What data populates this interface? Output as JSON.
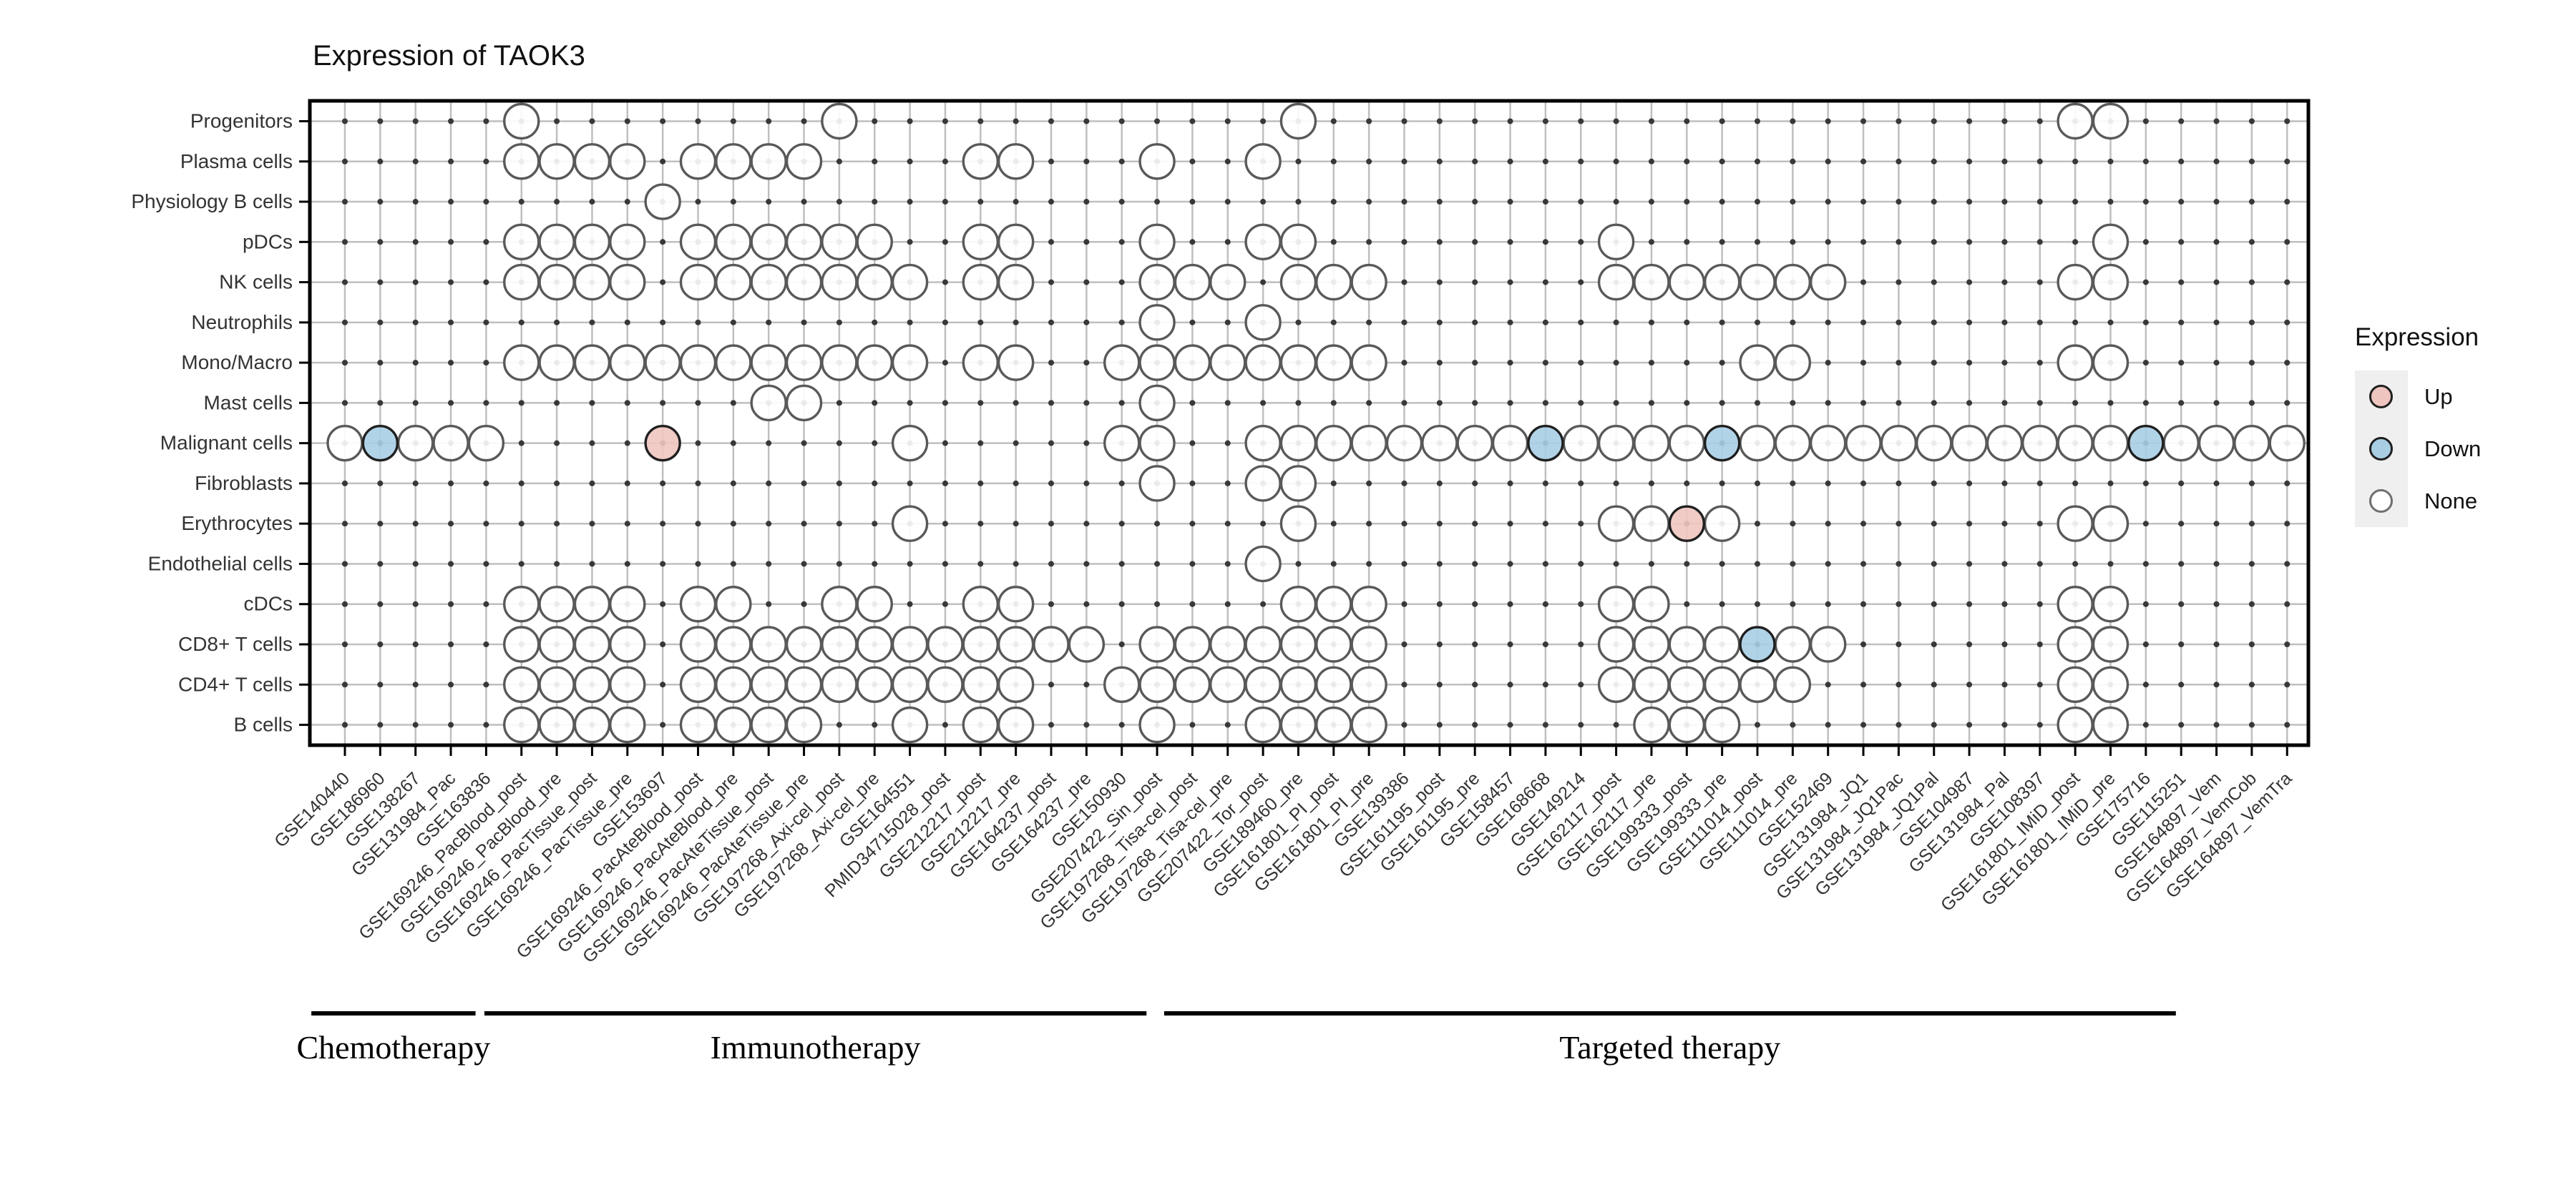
{
  "chart_data": {
    "type": "scatter",
    "variant": "dot-matrix",
    "title": "Expression of TAOK3",
    "legend": {
      "title": "Expression",
      "items": [
        {
          "label": "Up",
          "value": "up",
          "color": "#efc5bf"
        },
        {
          "label": "Down",
          "value": "down",
          "color": "#a9cee4"
        },
        {
          "label": "None",
          "value": "none",
          "color": "#ffffff"
        }
      ]
    },
    "rows": [
      "Progenitors",
      "Plasma cells",
      "Physiology B cells",
      "pDCs",
      "NK cells",
      "Neutrophils",
      "Mono/Macro",
      "Mast cells",
      "Malignant cells",
      "Fibroblasts",
      "Erythrocytes",
      "Endothelial cells",
      "cDCs",
      "CD8+ T cells",
      "CD4+ T cells",
      "B cells"
    ],
    "columns": [
      "GSE140440",
      "GSE186960",
      "GSE138267",
      "GSE131984_Pac",
      "GSE163836",
      "GSE169246_PacBlood_post",
      "GSE169246_PacBlood_pre",
      "GSE169246_PacTissue_post",
      "GSE169246_PacTissue_pre",
      "GSE153697",
      "GSE169246_PacAteBlood_post",
      "GSE169246_PacAteBlood_pre",
      "GSE169246_PacAteTissue_post",
      "GSE169246_PacAteTissue_pre",
      "GSE197268_Axi-cel_post",
      "GSE197268_Axi-cel_pre",
      "GSE164551",
      "PMID34715028_post",
      "GSE212217_post",
      "GSE212217_pre",
      "GSE164237_post",
      "GSE164237_pre",
      "GSE150930",
      "GSE207422_Sin_post",
      "GSE197268_Tisa-cel_post",
      "GSE197268_Tisa-cel_pre",
      "GSE207422_Tor_post",
      "GSE189460_pre",
      "GSE161801_PI_post",
      "GSE161801_PI_pre",
      "GSE139386",
      "GSE161195_post",
      "GSE161195_pre",
      "GSE158457",
      "GSE168668",
      "GSE149214",
      "GSE162117_post",
      "GSE162117_pre",
      "GSE199333_post",
      "GSE199333_pre",
      "GSE111014_post",
      "GSE111014_pre",
      "GSE152469",
      "GSE131984_JQ1",
      "GSE131984_JQ1Pac",
      "GSE131984_JQ1Pal",
      "GSE104987",
      "GSE131984_Pal",
      "GSE108397",
      "GSE161801_IMiD_post",
      "GSE161801_IMiD_pre",
      "GSE175716",
      "GSE115251",
      "GSE164897_Vem",
      "GSE164897_VemCob",
      "GSE164897_VemTra"
    ],
    "groups": [
      {
        "label": "Chemotherapy",
        "start": 1,
        "end": 4,
        "pad_left": 0.95,
        "pad_right": 0.7
      },
      {
        "label": "Immunotherapy",
        "start": 5,
        "end": 23,
        "pad_left": 0.05,
        "pad_right": 0.7
      },
      {
        "label": "Targeted therapy",
        "start": 24,
        "end": 52,
        "pad_left": -0.2,
        "pad_right": 0.85
      }
    ],
    "cells": [
      {
        "row": "Progenitors",
        "none": [
          6,
          15,
          28,
          50,
          51
        ],
        "up": [],
        "down": []
      },
      {
        "row": "Plasma cells",
        "none": [
          6,
          7,
          8,
          9,
          11,
          12,
          13,
          14,
          19,
          20,
          24,
          27
        ],
        "up": [],
        "down": []
      },
      {
        "row": "Physiology B cells",
        "none": [
          10
        ],
        "up": [],
        "down": []
      },
      {
        "row": "pDCs",
        "none": [
          6,
          7,
          8,
          9,
          11,
          12,
          13,
          14,
          15,
          16,
          19,
          20,
          24,
          27,
          28,
          37,
          51
        ],
        "up": [],
        "down": []
      },
      {
        "row": "NK cells",
        "none": [
          6,
          7,
          8,
          9,
          11,
          12,
          13,
          14,
          15,
          16,
          17,
          19,
          20,
          24,
          25,
          26,
          28,
          29,
          30,
          37,
          38,
          39,
          40,
          41,
          42,
          43,
          50,
          51
        ],
        "up": [],
        "down": []
      },
      {
        "row": "Neutrophils",
        "none": [
          24,
          27
        ],
        "up": [],
        "down": []
      },
      {
        "row": "Mono/Macro",
        "none": [
          6,
          7,
          8,
          9,
          10,
          11,
          12,
          13,
          14,
          15,
          16,
          17,
          19,
          20,
          23,
          24,
          25,
          26,
          27,
          28,
          29,
          30,
          41,
          42,
          50,
          51
        ],
        "up": [],
        "down": []
      },
      {
        "row": "Mast cells",
        "none": [
          13,
          14,
          24
        ],
        "up": [],
        "down": []
      },
      {
        "row": "Malignant cells",
        "none": [
          1,
          3,
          4,
          5,
          17,
          23,
          24,
          27,
          28,
          29,
          30,
          31,
          32,
          33,
          34,
          36,
          37,
          38,
          39,
          41,
          42,
          43,
          44,
          45,
          46,
          47,
          48,
          49,
          50,
          51,
          53,
          54,
          55,
          56
        ],
        "up": [
          10
        ],
        "down": [
          2,
          35,
          40,
          52
        ]
      },
      {
        "row": "Fibroblasts",
        "none": [
          24,
          27,
          28
        ],
        "up": [],
        "down": []
      },
      {
        "row": "Erythrocytes",
        "none": [
          17,
          28,
          37,
          38,
          40,
          50,
          51
        ],
        "up": [
          39
        ],
        "down": []
      },
      {
        "row": "Endothelial cells",
        "none": [
          27
        ],
        "up": [],
        "down": []
      },
      {
        "row": "cDCs",
        "none": [
          6,
          7,
          8,
          9,
          11,
          12,
          15,
          16,
          19,
          20,
          28,
          29,
          30,
          37,
          38,
          50,
          51
        ],
        "up": [],
        "down": []
      },
      {
        "row": "CD8+ T cells",
        "none": [
          6,
          7,
          8,
          9,
          11,
          12,
          13,
          14,
          15,
          16,
          17,
          18,
          19,
          20,
          21,
          22,
          24,
          25,
          26,
          27,
          28,
          29,
          30,
          37,
          38,
          39,
          40,
          42,
          43,
          50,
          51
        ],
        "up": [],
        "down": [
          41
        ]
      },
      {
        "row": "CD4+ T cells",
        "none": [
          6,
          7,
          8,
          9,
          11,
          12,
          13,
          14,
          15,
          16,
          17,
          18,
          19,
          20,
          23,
          24,
          25,
          26,
          27,
          28,
          29,
          30,
          37,
          38,
          39,
          40,
          41,
          42,
          50,
          51
        ],
        "up": [],
        "down": []
      },
      {
        "row": "B cells",
        "none": [
          6,
          7,
          8,
          9,
          11,
          12,
          13,
          14,
          17,
          19,
          20,
          24,
          27,
          28,
          29,
          30,
          38,
          39,
          40,
          50,
          51
        ],
        "up": [],
        "down": []
      }
    ],
    "colors": {
      "up_fill": "#efc5bf",
      "down_fill": "#a9cee4",
      "none_fill": "#ffffff",
      "open_stroke": "#595959",
      "filled_stroke": "#1f1f1f",
      "grid": "#bfbfbf",
      "dot": "#383838",
      "border": "#000000"
    },
    "layout_hints": {
      "grid": "on",
      "legend_position": "right",
      "x_tick_rotation": 45
    }
  },
  "legend": {
    "title": "Expression"
  }
}
